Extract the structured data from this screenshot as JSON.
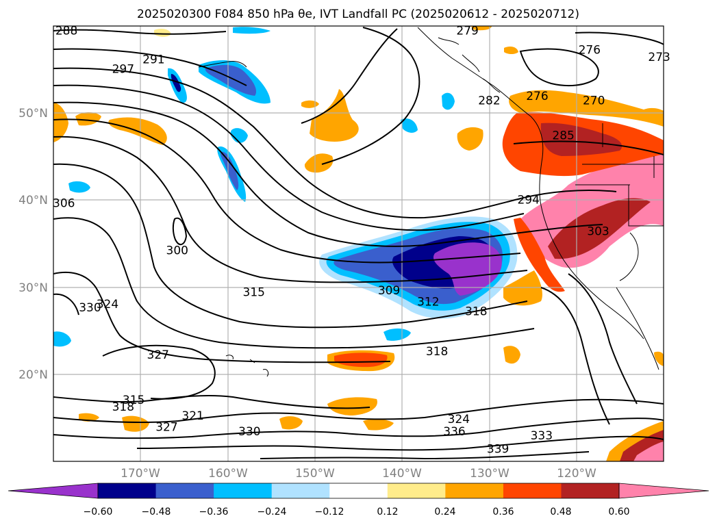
{
  "title": "2025020300 F084 850 hPa θe, IVT Landfall PC (2025020612 - 2025020712)",
  "map": {
    "lon_range": [
      -180,
      -110
    ],
    "lat_range": [
      10,
      60
    ],
    "lon_ticks": [
      "170°W",
      "160°W",
      "150°W",
      "140°W",
      "130°W",
      "120°W"
    ],
    "lat_ticks": [
      "50°N",
      "40°N",
      "30°N",
      "20°N"
    ],
    "gridlines": true
  },
  "colorbar": {
    "levels": [
      "−0.60",
      "−0.48",
      "−0.36",
      "−0.24",
      "−0.12",
      "0.12",
      "0.24",
      "0.36",
      "0.48",
      "0.60"
    ],
    "colors": [
      "#9932cc",
      "#00008b",
      "#3a5fcd",
      "#00bfff",
      "#b0e2ff",
      "#ffffff",
      "#ffec8b",
      "#ffa500",
      "#ff4500",
      "#b22222",
      "#ff82ab"
    ],
    "extend": "both"
  },
  "contour_labels": [
    {
      "text": "288",
      "lon": -178.5,
      "lat": 59.0
    },
    {
      "text": "279",
      "lon": -132.5,
      "lat": 59.0
    },
    {
      "text": "276",
      "lon": -118.5,
      "lat": 56.8
    },
    {
      "text": "273",
      "lon": -110.5,
      "lat": 56.0
    },
    {
      "text": "297",
      "lon": -172.0,
      "lat": 54.6
    },
    {
      "text": "291",
      "lon": -168.5,
      "lat": 55.7
    },
    {
      "text": "282",
      "lon": -130.0,
      "lat": 51.0
    },
    {
      "text": "276",
      "lon": -124.5,
      "lat": 51.5
    },
    {
      "text": "270",
      "lon": -118.0,
      "lat": 51.0
    },
    {
      "text": "285",
      "lon": -121.5,
      "lat": 47.0
    },
    {
      "text": "306",
      "lon": -178.8,
      "lat": 39.2
    },
    {
      "text": "294",
      "lon": -125.5,
      "lat": 39.6
    },
    {
      "text": "303",
      "lon": -117.5,
      "lat": 36.0
    },
    {
      "text": "300",
      "lon": -165.8,
      "lat": 33.8
    },
    {
      "text": "315",
      "lon": -157.0,
      "lat": 29.0
    },
    {
      "text": "309",
      "lon": -141.5,
      "lat": 29.2
    },
    {
      "text": "312",
      "lon": -137.0,
      "lat": 27.9
    },
    {
      "text": "318",
      "lon": -131.5,
      "lat": 26.8
    },
    {
      "text": "330",
      "lon": -175.8,
      "lat": 27.2
    },
    {
      "text": "324",
      "lon": -173.8,
      "lat": 27.6
    },
    {
      "text": "327",
      "lon": -168.0,
      "lat": 21.8
    },
    {
      "text": "318",
      "lon": -136.0,
      "lat": 22.2
    },
    {
      "text": "315",
      "lon": -170.8,
      "lat": 16.6
    },
    {
      "text": "318",
      "lon": -172.0,
      "lat": 15.8
    },
    {
      "text": "321",
      "lon": -164.0,
      "lat": 14.8
    },
    {
      "text": "327",
      "lon": -167.0,
      "lat": 13.5
    },
    {
      "text": "330",
      "lon": -157.5,
      "lat": 13.0
    },
    {
      "text": "324",
      "lon": -133.5,
      "lat": 14.4
    },
    {
      "text": "336",
      "lon": -134.0,
      "lat": 13.0
    },
    {
      "text": "333",
      "lon": -124.0,
      "lat": 12.5
    },
    {
      "text": "339",
      "lon": -129.0,
      "lat": 11.0
    }
  ]
}
